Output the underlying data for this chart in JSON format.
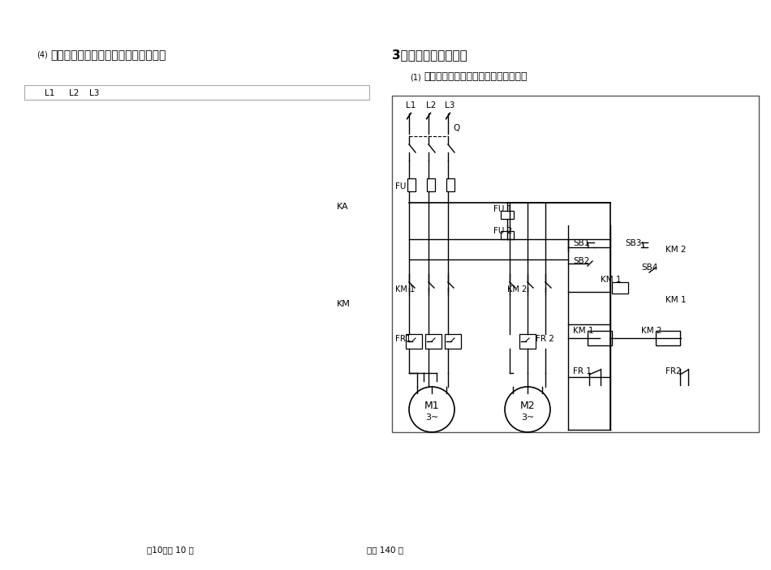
{
  "title_left_superscript": "(4)",
  "title_left": "中间继电器把握的点动、长动把握电路",
  "title_right_num": "3、接次起停把握电路",
  "title_right_sub_superscript": "(1)",
  "title_right_sub": "承受两个停顿按钮的接次起停把握电路",
  "label_KA": "KA",
  "label_KM": "KM",
  "left_box_labels": [
    "L1",
    "L2",
    "L3"
  ],
  "footer_left": "第10页共 10 页",
  "footer_right": "共印 140 份",
  "bg_color": "#ffffff",
  "line_color": "#000000",
  "box_border_color": "#888888"
}
